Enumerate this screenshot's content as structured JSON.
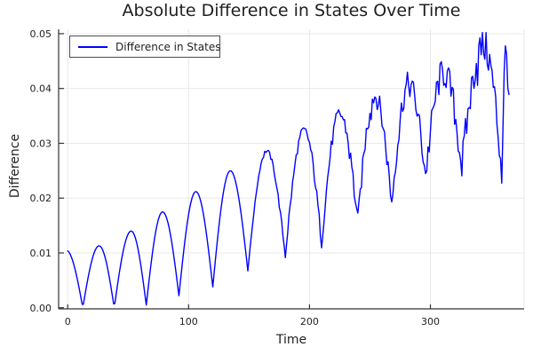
{
  "chart_data": {
    "type": "line",
    "title": "Absolute Difference in States Over Time",
    "xlabel": "Time",
    "ylabel": "Difference",
    "xlim": [
      -7.5,
      377.5
    ],
    "ylim": [
      -0.0002,
      0.0508
    ],
    "xtick_values": [
      0,
      100,
      200,
      300
    ],
    "xtick_labels": [
      "0",
      "100",
      "200",
      "300"
    ],
    "ytick_values": [
      0.0,
      0.01,
      0.02,
      0.03,
      0.04,
      0.05
    ],
    "ytick_labels": [
      "0.00",
      "0.01",
      "0.02",
      "0.03",
      "0.04",
      "0.05"
    ],
    "grid": true,
    "legend_position": "top-left",
    "series": [
      {
        "name": "Difference in States",
        "color": "#0000ff",
        "description": "Oscillating absolute difference: sharp minima near zero early, rising floor and peaks over time, increasingly noisy after t~150, max ~0.0497 near t~347.",
        "t_range": [
          0,
          365
        ],
        "sample_step": 1.0,
        "keypoints": [
          [
            -1.25,
            0.0105
          ],
          [
            12.5,
            0.0
          ],
          [
            26,
            0.0113
          ],
          [
            38.5,
            0.0
          ],
          [
            52.5,
            0.014
          ],
          [
            65,
            0.0005
          ],
          [
            78.5,
            0.0175
          ],
          [
            92,
            0.0022
          ],
          [
            106,
            0.0212
          ],
          [
            120,
            0.0038
          ],
          [
            134.5,
            0.025
          ],
          [
            149,
            0.0068
          ],
          [
            164.5,
            0.0286
          ],
          [
            180,
            0.0095
          ],
          [
            195.5,
            0.0323
          ],
          [
            210,
            0.0118
          ],
          [
            225,
            0.0353
          ],
          [
            240,
            0.0158
          ],
          [
            254,
            0.0386
          ],
          [
            268,
            0.0192
          ],
          [
            282,
            0.0407
          ],
          [
            296,
            0.0243
          ],
          [
            311,
            0.0428
          ],
          [
            326,
            0.0258
          ],
          [
            344,
            0.0478
          ],
          [
            359,
            0.0252
          ],
          [
            362.5,
            0.0462
          ],
          [
            365,
            0.0397
          ]
        ],
        "noise_amplitude": [
          [
            0,
            0
          ],
          [
            145,
            0
          ],
          [
            165,
            0.0004
          ],
          [
            200,
            0.001
          ],
          [
            240,
            0.0016
          ],
          [
            262,
            0.0021
          ],
          [
            290,
            0.0026
          ],
          [
            330,
            0.0032
          ],
          [
            365,
            0.0038
          ]
        ]
      }
    ]
  },
  "style": {
    "accent": "#0000ff",
    "grid_color": "#e8e8e8",
    "axis_color": "#333333",
    "text_color": "#1f1f1f",
    "legend_border": "#4d4d4d",
    "background": "#ffffff"
  }
}
